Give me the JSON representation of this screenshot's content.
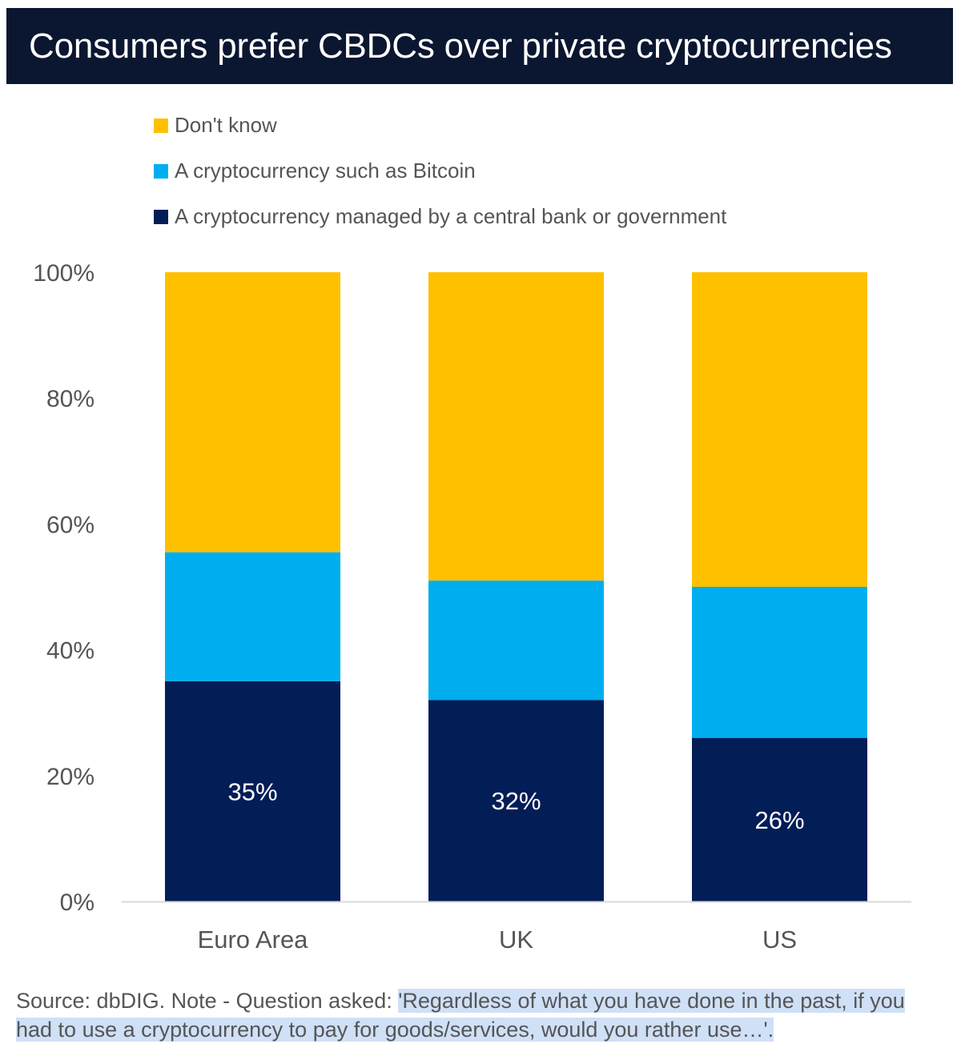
{
  "chart_data": {
    "type": "bar",
    "stacked": true,
    "title": "Consumers prefer CBDCs over private cryptocurrencies",
    "categories": [
      "Euro Area",
      "UK",
      "US"
    ],
    "series": [
      {
        "name": "A cryptocurrency managed by a central bank or government",
        "values": [
          35,
          32,
          26
        ],
        "color": "#031d57",
        "labels": [
          "35%",
          "32%",
          "26%"
        ]
      },
      {
        "name": "A cryptocurrency such as Bitcoin",
        "values": [
          20.5,
          19,
          24
        ],
        "color": "#00aeef"
      },
      {
        "name": "Don't know",
        "values": [
          44.5,
          49,
          50
        ],
        "color": "#ffc000"
      }
    ],
    "legend_order": [
      "Don't know",
      "A cryptocurrency such as Bitcoin",
      "A cryptocurrency managed by a central bank or government"
    ],
    "yticks": [
      "0%",
      "20%",
      "40%",
      "60%",
      "80%",
      "100%"
    ],
    "ylim": [
      0,
      100
    ],
    "legend_position": "top-left",
    "grid": false
  },
  "source": {
    "prefix": "Source: dbDIG. Note - Question asked: ",
    "quote": "'Regardless of what you have done in the past, if you had to use a cryptocurrency to pay for goods/services, would you rather use…'."
  }
}
